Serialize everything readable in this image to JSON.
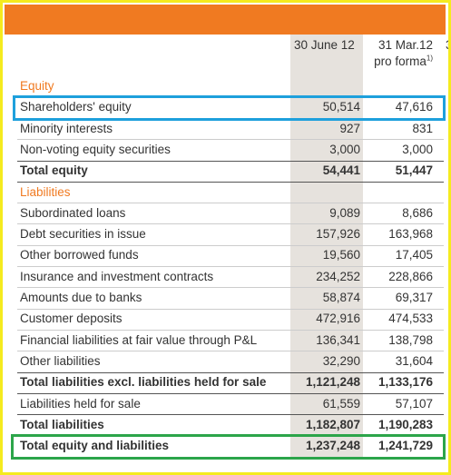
{
  "header": {
    "col1": "30 June 12",
    "col2": "31 Mar.12",
    "col2_note": "pro forma",
    "col2_footnote": "1)",
    "col3_partial": "3"
  },
  "table": {
    "rows": [
      {
        "label": "Equity",
        "kind": "section"
      },
      {
        "label": "Shareholders' equity",
        "v1": "50,514",
        "v2": "47,616",
        "kind": "row"
      },
      {
        "label": "Minority interests",
        "v1": "927",
        "v2": "831",
        "kind": "row"
      },
      {
        "label": "Non-voting equity securities",
        "v1": "3,000",
        "v2": "3,000",
        "kind": "row"
      },
      {
        "label": "Total equity",
        "v1": "54,441",
        "v2": "51,447",
        "kind": "total"
      },
      {
        "label": "Liabilities",
        "kind": "section"
      },
      {
        "label": "Subordinated loans",
        "v1": "9,089",
        "v2": "8,686",
        "kind": "row"
      },
      {
        "label": "Debt securities in issue",
        "v1": "157,926",
        "v2": "163,968",
        "kind": "row"
      },
      {
        "label": "Other borrowed funds",
        "v1": "19,560",
        "v2": "17,405",
        "kind": "row"
      },
      {
        "label": "Insurance and investment contracts",
        "v1": "234,252",
        "v2": "228,866",
        "kind": "row"
      },
      {
        "label": "Amounts due to banks",
        "v1": "58,874",
        "v2": "69,317",
        "kind": "row"
      },
      {
        "label": "Customer deposits",
        "v1": "472,916",
        "v2": "474,533",
        "kind": "row"
      },
      {
        "label": "Financial liabilities at fair value through P&L",
        "v1": "136,341",
        "v2": "138,798",
        "kind": "row"
      },
      {
        "label": "Other liabilities",
        "v1": "32,290",
        "v2": "31,604",
        "kind": "row"
      },
      {
        "label": "Total liabilities excl. liabilities held for sale",
        "v1": "1,121,248",
        "v2": "1,133,176",
        "kind": "total"
      },
      {
        "label": "Liabilities held for sale",
        "v1": "61,559",
        "v2": "57,107",
        "kind": "row"
      },
      {
        "label": "Total liabilities",
        "v1": "1,182,807",
        "v2": "1,190,283",
        "kind": "total"
      },
      {
        "label": "Total equity and liabilities",
        "v1": "1,237,248",
        "v2": "1,241,729",
        "kind": "total"
      }
    ]
  }
}
